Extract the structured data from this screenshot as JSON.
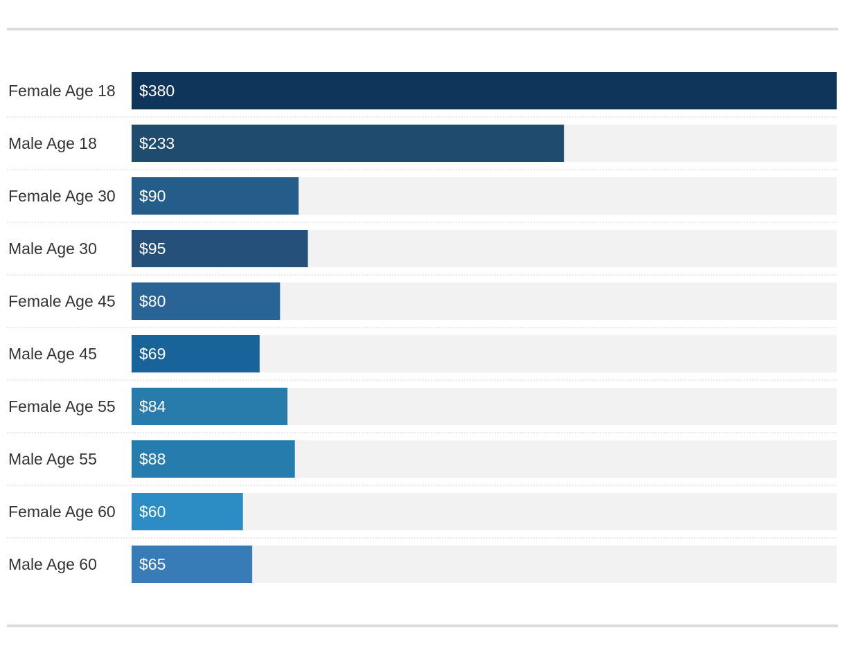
{
  "chart_data": {
    "type": "bar",
    "orientation": "horizontal",
    "title": "",
    "xlabel": "",
    "ylabel": "",
    "xlim": [
      0,
      380
    ],
    "categories": [
      "Female Age 18",
      "Male Age 18",
      "Female Age 30",
      "Male Age 30",
      "Female Age 45",
      "Male Age 45",
      "Female Age 55",
      "Male Age 55",
      "Female Age 60",
      "Male Age 60"
    ],
    "values": [
      380,
      233,
      90,
      95,
      80,
      69,
      84,
      88,
      60,
      65
    ],
    "value_labels": [
      "$380",
      "$233",
      "$90",
      "$95",
      "$80",
      "$69",
      "$84",
      "$88",
      "$60",
      "$65"
    ],
    "bar_colors": [
      "#10355a",
      "#1f4b6e",
      "#245c8a",
      "#245079",
      "#2a6396",
      "#19639b",
      "#287cab",
      "#267cac",
      "#2b8dc4",
      "#377bb7"
    ],
    "track_color": "#f2f2f2",
    "grid": false,
    "legend": "none"
  }
}
